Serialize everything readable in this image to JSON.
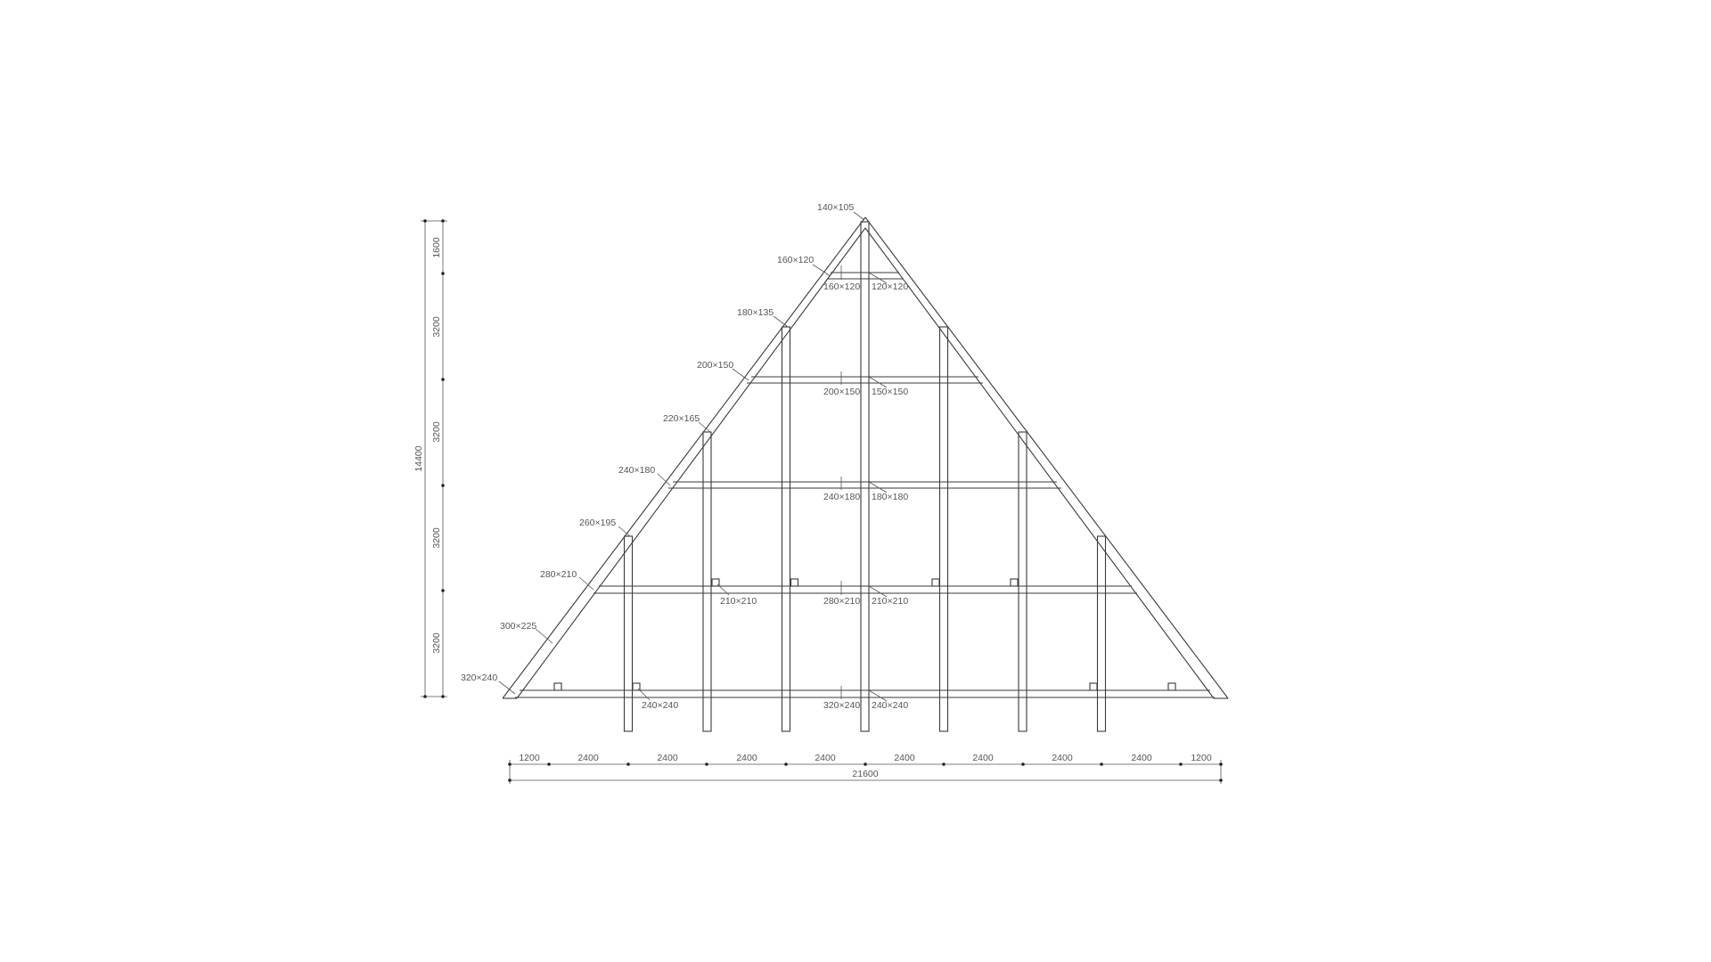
{
  "member_labels": {
    "apex": "140×105",
    "rafter_1": "160×120",
    "rafter_2": "180×135",
    "rafter_3": "200×150",
    "rafter_4": "220×165",
    "rafter_5": "240×180",
    "rafter_6": "260×195",
    "rafter_7": "280×210",
    "rafter_8": "300×225",
    "rafter_9": "320×240",
    "tie_1_left": "160×120",
    "tie_1_right": "120×120",
    "tie_2_left": "200×150",
    "tie_2_right": "150×150",
    "tie_3_left": "240×180",
    "tie_3_right": "180×180",
    "tie_4_post": "210×210",
    "tie_4_left": "280×210",
    "tie_4_right": "210×210",
    "tie_5_post": "240×240",
    "tie_5_left": "320×240",
    "tie_5_right": "240×240"
  },
  "vertical_dims": {
    "total": "14400",
    "segments": [
      "1600",
      "3200",
      "3200",
      "3200",
      "3200"
    ]
  },
  "horizontal_dims": {
    "total": "21600",
    "segments": [
      "1200",
      "2400",
      "2400",
      "2400",
      "2400",
      "2400",
      "2400",
      "2400",
      "2400",
      "1200"
    ]
  }
}
